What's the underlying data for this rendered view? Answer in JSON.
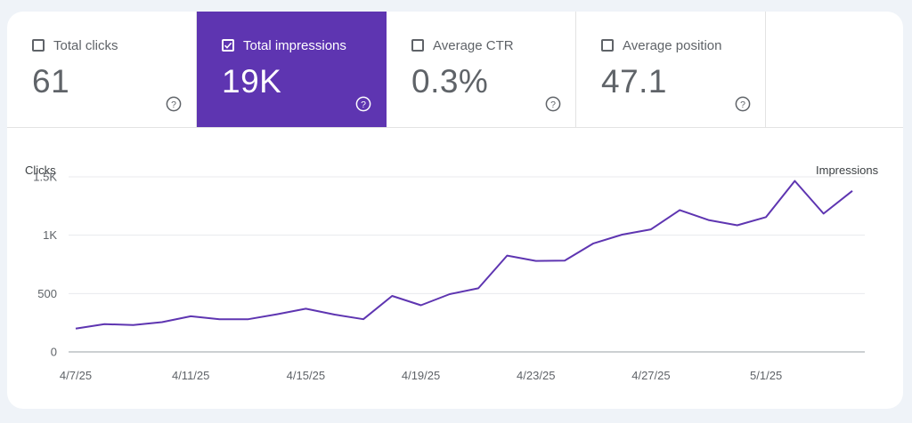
{
  "metrics": [
    {
      "label": "Total clicks",
      "value": "61",
      "checked": false,
      "icon": "help-circle-icon"
    },
    {
      "label": "Total impressions",
      "value": "19K",
      "checked": true,
      "icon": "help-circle-icon"
    },
    {
      "label": "Average CTR",
      "value": "0.3%",
      "checked": false,
      "icon": "help-circle-icon"
    },
    {
      "label": "Average position",
      "value": "47.1",
      "checked": false,
      "icon": "help-circle-icon"
    }
  ],
  "colors": {
    "accent": "#5e35b1",
    "text": "#5f6368",
    "grid": "#e8eaed",
    "background": "#eff3f8"
  },
  "chart_data": {
    "type": "line",
    "ylabel_left": "Clicks",
    "ylabel_right": "Impressions",
    "yticks": [
      "0",
      "500",
      "1K",
      "1.5K"
    ],
    "ytick_values": [
      0,
      500,
      1000,
      1500
    ],
    "ylim": [
      0,
      1500
    ],
    "xticks": [
      "4/7/25",
      "4/11/25",
      "4/15/25",
      "4/19/25",
      "4/23/25",
      "4/27/25",
      "5/1/25"
    ],
    "grid": true,
    "series": [
      {
        "color": "#5e35b1",
        "x": [
          "4/7/25",
          "4/8/25",
          "4/9/25",
          "4/10/25",
          "4/11/25",
          "4/12/25",
          "4/13/25",
          "4/14/25",
          "4/15/25",
          "4/16/25",
          "4/17/25",
          "4/18/25",
          "4/19/25",
          "4/20/25",
          "4/21/25",
          "4/22/25",
          "4/23/25",
          "4/24/25",
          "4/25/25",
          "4/26/25",
          "4/27/25",
          "4/28/25",
          "4/29/25",
          "4/30/25",
          "5/1/25",
          "5/2/25",
          "5/3/25",
          "5/4/25"
        ],
        "values": [
          200,
          238,
          230,
          255,
          305,
          280,
          280,
          323,
          370,
          320,
          280,
          480,
          400,
          495,
          545,
          825,
          780,
          782,
          930,
          1005,
          1050,
          1215,
          1130,
          1085,
          1155,
          1465,
          1185,
          1380
        ]
      }
    ]
  }
}
